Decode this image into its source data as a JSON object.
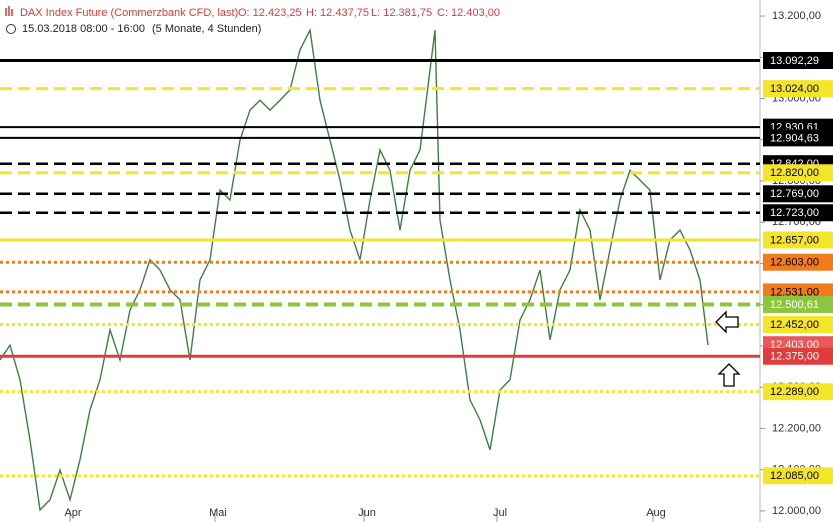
{
  "chart_data": {
    "type": "line",
    "title": "DAX Index Future (Commerzbank CFD, last)",
    "ohlc": [
      "O: 12.423,25",
      "H: 12.437,75",
      "L: 12.381,75",
      "C: 12.403,00"
    ],
    "period": "15.03.2018 08:00 - 16:00",
    "range_note": "(5 Monate, 4 Stunden)",
    "x": [
      0,
      10,
      20,
      30,
      40,
      50,
      60,
      70,
      80,
      90,
      100,
      110,
      120,
      130,
      140,
      150,
      160,
      170,
      180,
      190,
      200,
      210,
      220,
      230,
      240,
      250,
      260,
      270,
      280,
      290,
      300,
      310,
      320,
      330,
      340,
      350,
      360,
      370,
      380,
      390,
      400,
      410,
      420,
      430,
      435,
      440,
      450,
      460,
      470,
      480,
      490,
      500,
      510,
      520,
      530,
      540,
      550,
      560,
      570,
      580,
      590,
      600,
      610,
      620,
      630,
      640,
      650,
      660,
      670,
      680,
      690,
      700,
      708
    ],
    "series": [
      {
        "name": "DAX Index Future",
        "color": "#3f7f3f",
        "values": [
          12366,
          12402,
          12318,
          12172,
          12002,
          12027,
          12099,
          12027,
          12124,
          12245,
          12318,
          12439,
          12366,
          12487,
          12536,
          12609,
          12584,
          12536,
          12512,
          12366,
          12560,
          12609,
          12778,
          12754,
          12899,
          12972,
          12996,
          12972,
          12996,
          13021,
          13118,
          13166,
          12996,
          12899,
          12802,
          12681,
          12609,
          12754,
          12875,
          12826,
          12681,
          12826,
          12875,
          13069,
          13166,
          12705,
          12560,
          12439,
          12269,
          12221,
          12148,
          12293,
          12318,
          12463,
          12512,
          12584,
          12415,
          12536,
          12584,
          12730,
          12681,
          12512,
          12633,
          12754,
          12826,
          12802,
          12778,
          12560,
          12657,
          12681,
          12633,
          12560,
          12402
        ]
      }
    ],
    "xlim": [
      0,
      760
    ],
    "xticks": [
      {
        "value": 70,
        "label": "Apr"
      },
      {
        "value": 215,
        "label": "Mai"
      },
      {
        "value": 364,
        "label": "Jun"
      },
      {
        "value": 497,
        "label": "Jul"
      },
      {
        "value": 653,
        "label": "Aug"
      }
    ],
    "ylim": [
      11973,
      13239
    ],
    "yticks": [
      {
        "value": 13200,
        "label": "13.200,00"
      },
      {
        "value": 13100,
        "label": "13.100,00"
      },
      {
        "value": 13000,
        "label": "13.000,00"
      },
      {
        "value": 12900,
        "label": "12.900,00"
      },
      {
        "value": 12800,
        "label": "12.800,00"
      },
      {
        "value": 12700,
        "label": "12.700,00"
      },
      {
        "value": 12600,
        "label": "12.600,00"
      },
      {
        "value": 12500,
        "label": "12.500,00"
      },
      {
        "value": 12400,
        "label": "12.400,00"
      },
      {
        "value": 12300,
        "label": "12.300,00"
      },
      {
        "value": 12200,
        "label": "12.200,00"
      },
      {
        "value": 12100,
        "label": "12.100,00"
      },
      {
        "value": 12000,
        "label": "12.000,00"
      }
    ],
    "hlines": [
      {
        "value": 13092.29,
        "label": "13.092,29",
        "color": "#000000",
        "style": "solid",
        "width": 3,
        "text_color": "#ffffff"
      },
      {
        "value": 13024,
        "label": "13.024,00",
        "color": "#f5e52a",
        "style": "dashed",
        "width": 3,
        "text_color": "#000000"
      },
      {
        "value": 12930.61,
        "label": "12.930,61",
        "color": "#000000",
        "style": "solid",
        "width": 2,
        "text_color": "#ffffff"
      },
      {
        "value": 12904.63,
        "label": "12.904,63",
        "color": "#000000",
        "style": "solid",
        "width": 2,
        "text_color": "#ffffff"
      },
      {
        "value": 12842,
        "label": "12.842,00",
        "color": "#000000",
        "style": "dashed",
        "width": 2.5,
        "text_color": "#ffffff"
      },
      {
        "value": 12820,
        "label": "12.820,00",
        "color": "#f5e52a",
        "style": "dashed",
        "width": 3,
        "text_color": "#000000"
      },
      {
        "value": 12769,
        "label": "12.769,00",
        "color": "#000000",
        "style": "dashed",
        "width": 2.5,
        "text_color": "#ffffff"
      },
      {
        "value": 12723,
        "label": "12.723,00",
        "color": "#000000",
        "style": "dashed",
        "width": 2.5,
        "text_color": "#ffffff"
      },
      {
        "value": 12657,
        "label": "12.657,00",
        "color": "#f5e52a",
        "style": "solid",
        "width": 3,
        "text_color": "#000000"
      },
      {
        "value": 12603,
        "label": "12.603,00",
        "color": "#f07c1e",
        "style": "dotted",
        "width": 3,
        "text_color": "#000000"
      },
      {
        "value": 12531,
        "label": "12.531,00",
        "color": "#f07c1e",
        "style": "dotted",
        "width": 3,
        "text_color": "#000000"
      },
      {
        "value": 12500.61,
        "label": "12.500,61",
        "color": "#8cc63e",
        "style": "dashed",
        "width": 4,
        "text_color": "#ffffff"
      },
      {
        "value": 12452,
        "label": "12.452,00",
        "color": "#f5e52a",
        "style": "dotted",
        "width": 3,
        "text_color": "#000000"
      },
      {
        "value": 12403,
        "label": "12.403,00",
        "color": "#e85a5a",
        "style": "none",
        "width": 0,
        "text_color": "#ffffff"
      },
      {
        "value": 12375,
        "label": "12.375,00",
        "color": "#e03c3c",
        "style": "solid",
        "width": 3,
        "text_color": "#ffffff"
      },
      {
        "value": 12289,
        "label": "12.289,00",
        "color": "#f5e52a",
        "style": "dotted",
        "width": 3,
        "text_color": "#000000"
      },
      {
        "value": 12085,
        "label": "12.085,00",
        "color": "#f5e52a",
        "style": "dotted",
        "width": 3,
        "text_color": "#000000"
      }
    ]
  }
}
